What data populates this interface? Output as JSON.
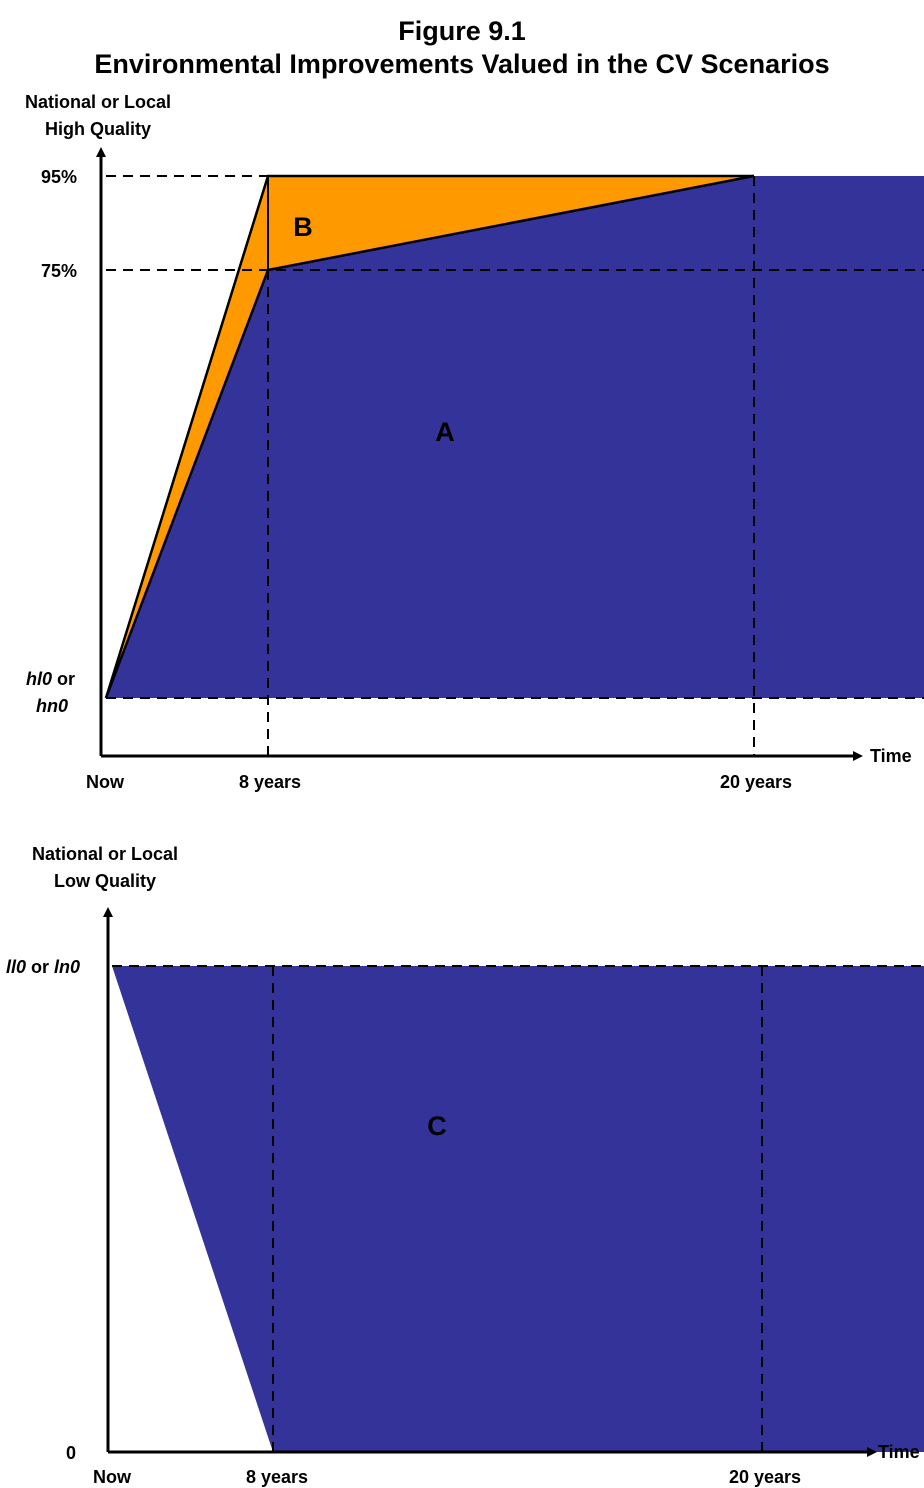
{
  "title": {
    "line1": "Figure 9.1",
    "line2": "Environmental Improvements Valued in the CV Scenarios"
  },
  "colors": {
    "region_blue": "#333399",
    "region_orange": "#ff9900",
    "axis": "#000000"
  },
  "top_diagram": {
    "y_axis_label_line1": "National or Local",
    "y_axis_label_line2": "High Quality",
    "y_tick_95": "95%",
    "y_tick_75": "75%",
    "y_tick_base_italic1": "hl0",
    "y_tick_base_or": " or",
    "y_tick_base_italic2": "hn0",
    "x_axis_label": "Time",
    "x_tick_now": "Now",
    "x_tick_8": "8 years",
    "x_tick_20": "20 years",
    "region_a_label": "A",
    "region_b_label": "B"
  },
  "bottom_diagram": {
    "y_axis_label_line1": "National or Local",
    "y_axis_label_line2": "Low Quality",
    "y_tick_top_italic1": "ll0",
    "y_tick_top_or": " or ",
    "y_tick_top_italic2": "ln0",
    "y_tick_zero": "0",
    "x_axis_label": "Time",
    "x_tick_now": "Now",
    "x_tick_8": "8 years",
    "x_tick_20": "20 years",
    "region_c_label": "C"
  }
}
